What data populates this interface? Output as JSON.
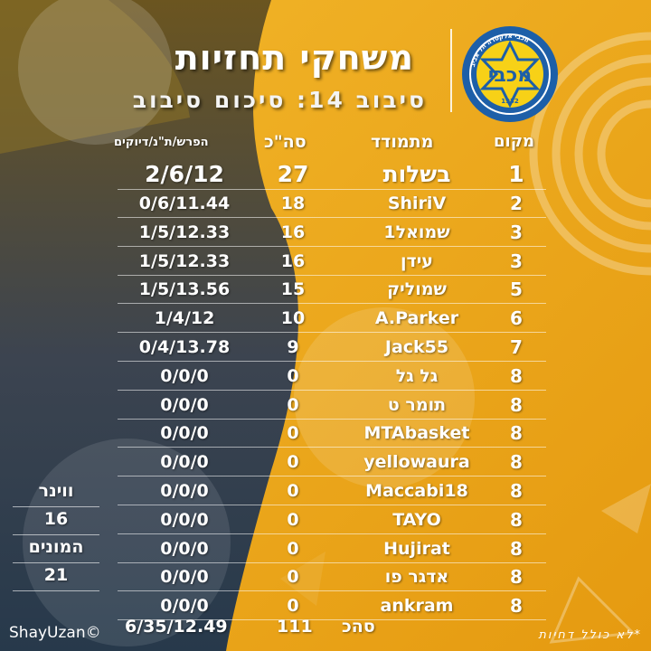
{
  "title": "משחקי תחזיות",
  "subtitle": "סיבוב 14: סיכום סיבוב",
  "logo": {
    "year": "1932",
    "ring_text": "מכבי אלקטרה תל אביב",
    "letters": "מכבי"
  },
  "columns": {
    "rank": "מקום",
    "name": "מתמודד",
    "total": "סה\"כ",
    "diff": "הפרש/ת\"נ/דיוקים"
  },
  "rows": [
    {
      "rank": "1",
      "name": "בשלות",
      "total": "27",
      "diff": "2/6/12"
    },
    {
      "rank": "2",
      "name": "ShiriV",
      "total": "18",
      "diff": "0/6/11.44"
    },
    {
      "rank": "3",
      "name": "שמואל1",
      "total": "16",
      "diff": "1/5/12.33"
    },
    {
      "rank": "3",
      "name": "עידן",
      "total": "16",
      "diff": "1/5/12.33"
    },
    {
      "rank": "5",
      "name": "שמוליק",
      "total": "15",
      "diff": "1/5/13.56"
    },
    {
      "rank": "6",
      "name": "A.Parker",
      "total": "10",
      "diff": "1/4/12"
    },
    {
      "rank": "7",
      "name": "Jack55",
      "total": "9",
      "diff": "0/4/13.78"
    },
    {
      "rank": "8",
      "name": "גל גל",
      "total": "0",
      "diff": "0/0/0"
    },
    {
      "rank": "8",
      "name": "תומר ט",
      "total": "0",
      "diff": "0/0/0"
    },
    {
      "rank": "8",
      "name": "MTAbasket",
      "total": "0",
      "diff": "0/0/0"
    },
    {
      "rank": "8",
      "name": "yellowaura",
      "total": "0",
      "diff": "0/0/0"
    },
    {
      "rank": "8",
      "name": "Maccabi18",
      "total": "0",
      "diff": "0/0/0"
    },
    {
      "rank": "8",
      "name": "TAYO",
      "total": "0",
      "diff": "0/0/0"
    },
    {
      "rank": "8",
      "name": "Hujirat",
      "total": "0",
      "diff": "0/0/0"
    },
    {
      "rank": "8",
      "name": "אדגר פו",
      "total": "0",
      "diff": "0/0/0"
    },
    {
      "rank": "8",
      "name": "ankram",
      "total": "0",
      "diff": "0/0/0"
    }
  ],
  "side": {
    "winner_label": "ווינר",
    "winner_value": "16",
    "count_label": "המונים",
    "count_value": "21"
  },
  "totals": {
    "label": "סהכ",
    "total": "111",
    "diff": "6/35/12.49"
  },
  "credit": "ShayUzan©",
  "note": "*לא כולל דחיות",
  "colors": {
    "gold": "#e8a318",
    "dark": "#2d3b4a",
    "brand_blue": "#1d5fa8",
    "brand_yellow": "#f7d117"
  }
}
